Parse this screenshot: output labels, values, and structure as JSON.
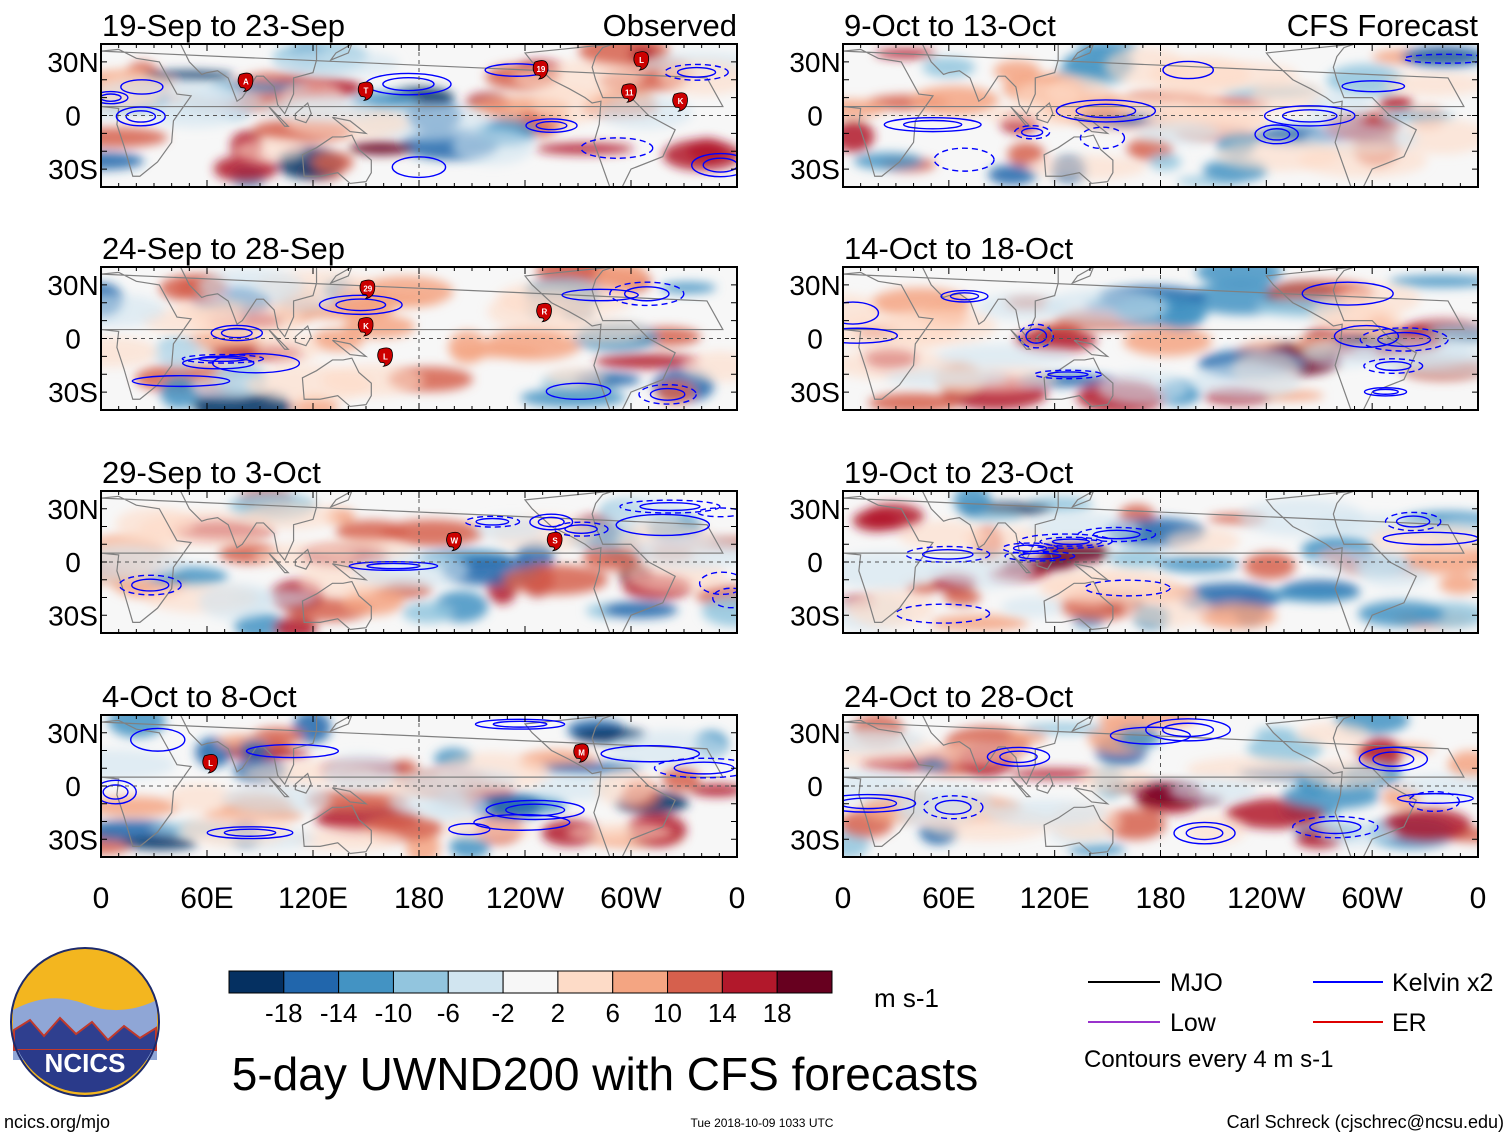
{
  "observed_label": "Observed",
  "forecast_label": "CFS Forecast",
  "observed_panels": [
    {
      "title": "19-Sep to 23-Sep",
      "storms": [
        {
          "id": "A",
          "lon": 82,
          "lat": 19
        },
        {
          "id": "T",
          "lon": 150,
          "lat": 14
        },
        {
          "id": "19",
          "lon": 249,
          "lat": 26
        },
        {
          "id": "L",
          "lon": 306,
          "lat": 31
        },
        {
          "id": "11",
          "lon": 299,
          "lat": 13
        },
        {
          "id": "K",
          "lon": 328,
          "lat": 8
        }
      ]
    },
    {
      "title": "24-Sep to 28-Sep",
      "storms": [
        {
          "id": "29",
          "lon": 151,
          "lat": 28
        },
        {
          "id": "R",
          "lon": 251,
          "lat": 15
        },
        {
          "id": "K",
          "lon": 150,
          "lat": 7
        },
        {
          "id": "L",
          "lon": 161,
          "lat": -10
        }
      ]
    },
    {
      "title": "29-Sep to 3-Oct",
      "storms": [
        {
          "id": "W",
          "lon": 200,
          "lat": 12
        },
        {
          "id": "S",
          "lon": 257,
          "lat": 12
        }
      ]
    },
    {
      "title": "4-Oct to 8-Oct",
      "storms": [
        {
          "id": "L",
          "lon": 62,
          "lat": 13
        },
        {
          "id": "M",
          "lon": 272,
          "lat": 19
        }
      ]
    }
  ],
  "forecast_panels": [
    {
      "title": "9-Oct to 13-Oct"
    },
    {
      "title": "14-Oct to 18-Oct"
    },
    {
      "title": "19-Oct to 23-Oct"
    },
    {
      "title": "24-Oct to 28-Oct"
    }
  ],
  "lat_labels": [
    "30N",
    "0",
    "30S"
  ],
  "lon_labels": [
    "0",
    "60E",
    "120E",
    "180",
    "120W",
    "60W",
    "0"
  ],
  "colorbar": {
    "colors": [
      "#053061",
      "#2166ac",
      "#4393c3",
      "#92c5de",
      "#d1e5f0",
      "#f7f7f7",
      "#fddbc7",
      "#f4a582",
      "#d6604d",
      "#b2182b",
      "#67001f"
    ],
    "tick_labels": [
      "-18",
      "-14",
      "-10",
      "-6",
      "-2",
      "2",
      "6",
      "10",
      "14",
      "18"
    ],
    "units": "m s-1"
  },
  "legend": {
    "items": [
      {
        "label": "MJO",
        "color": "#000000"
      },
      {
        "label": "Low",
        "color": "#9933cc"
      },
      {
        "label": "Kelvin x2",
        "color": "#0000ff"
      },
      {
        "label": "ER",
        "color": "#dd0000"
      }
    ],
    "note": "Contours every 4 m s-1"
  },
  "logo_text": "NCICS",
  "main_title": "5-day UWND200 with CFS forecasts",
  "footer": {
    "left": "ncics.org/mjo",
    "center": "Tue 2018-10-09 1033 UTC",
    "right": "Carl Schreck (cjschrec@ncsu.edu)"
  },
  "colors": {
    "land_outline": "#808080",
    "contour": "#0000ff",
    "storm": "#cc0000",
    "gridline": "#555555"
  }
}
